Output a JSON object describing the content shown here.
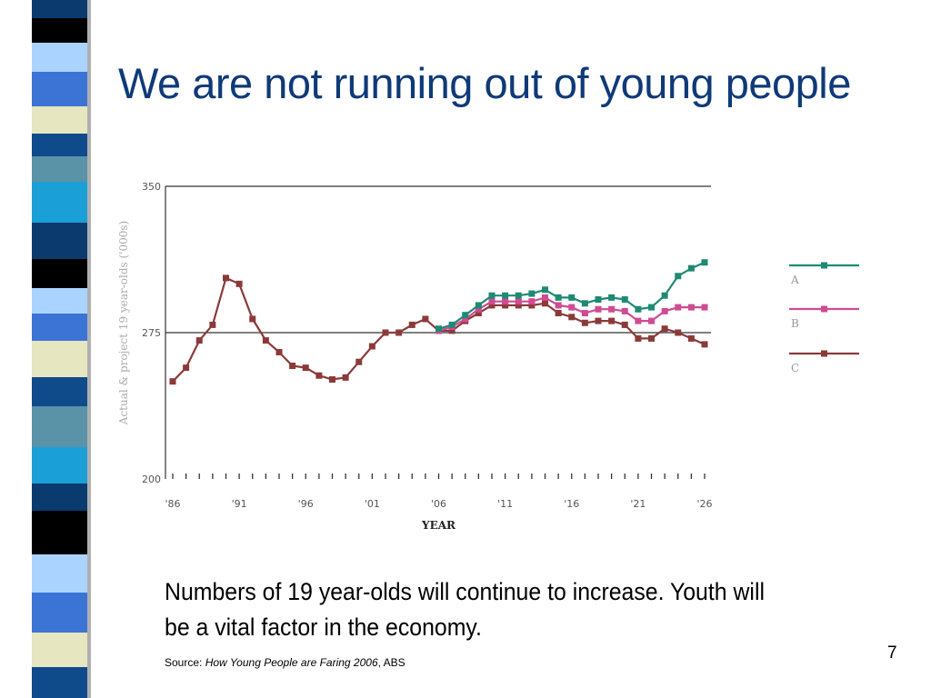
{
  "slide": {
    "title": "We are not running out of young people",
    "caption": "Numbers of 19 year-olds will continue to increase. Youth will be a vital factor in the economy.",
    "source_prefix": "Source: ",
    "source_title": "How Young People are Faring 2006",
    "source_suffix": ", ABS",
    "page_number": "7"
  },
  "colors": {
    "title": "#0f3a78",
    "series_A": "#1e8a74",
    "series_B": "#cf4b93",
    "series_C": "#8b3a3a",
    "axis": "#333333",
    "tick_text": "#555555",
    "legend_text": "#9a9a9a"
  },
  "chart_data": {
    "type": "line",
    "ylabel": "Actual & project 19 year-olds ('000s)",
    "xlabel": "YEAR",
    "ylim": [
      200,
      350
    ],
    "yticks": [
      200,
      275,
      350
    ],
    "reference_line": 275,
    "xlim": [
      1986,
      2026
    ],
    "xtick_labels": [
      "'86",
      "'91",
      "'96",
      "'01",
      "'06",
      "'11",
      "'16",
      "'21",
      "'26"
    ],
    "xtick_values": [
      1986,
      1991,
      1996,
      2001,
      2006,
      2011,
      2016,
      2021,
      2026
    ],
    "legend_position": "right",
    "series": [
      {
        "name": "A",
        "x": [
          2006,
          2007,
          2008,
          2009,
          2010,
          2011,
          2012,
          2013,
          2014,
          2015,
          2016,
          2017,
          2018,
          2019,
          2020,
          2021,
          2022,
          2023,
          2024,
          2025,
          2026
        ],
        "values": [
          277,
          279,
          284,
          289,
          294,
          294,
          294,
          295,
          297,
          293,
          293,
          290,
          292,
          293,
          292,
          287,
          288,
          294,
          304,
          308,
          311
        ]
      },
      {
        "name": "B",
        "x": [
          2006,
          2007,
          2008,
          2009,
          2010,
          2011,
          2012,
          2013,
          2014,
          2015,
          2016,
          2017,
          2018,
          2019,
          2020,
          2021,
          2022,
          2023,
          2024,
          2025,
          2026
        ],
        "values": [
          276,
          278,
          282,
          287,
          291,
          291,
          291,
          291,
          293,
          289,
          288,
          285,
          287,
          287,
          286,
          281,
          281,
          286,
          288,
          288,
          288
        ]
      },
      {
        "name": "C",
        "x": [
          1986,
          1987,
          1988,
          1989,
          1990,
          1991,
          1992,
          1993,
          1994,
          1995,
          1996,
          1997,
          1998,
          1999,
          2000,
          2001,
          2002,
          2003,
          2004,
          2005,
          2006,
          2007,
          2008,
          2009,
          2010,
          2011,
          2012,
          2013,
          2014,
          2015,
          2016,
          2017,
          2018,
          2019,
          2020,
          2021,
          2022,
          2023,
          2024,
          2025,
          2026
        ],
        "values": [
          250,
          257,
          271,
          279,
          303,
          300,
          282,
          271,
          265,
          258,
          257,
          253,
          251,
          252,
          260,
          268,
          275,
          275,
          279,
          282,
          276,
          276,
          281,
          285,
          289,
          289,
          289,
          289,
          290,
          285,
          283,
          280,
          281,
          281,
          279,
          272,
          272,
          277,
          275,
          272,
          269
        ]
      }
    ]
  }
}
